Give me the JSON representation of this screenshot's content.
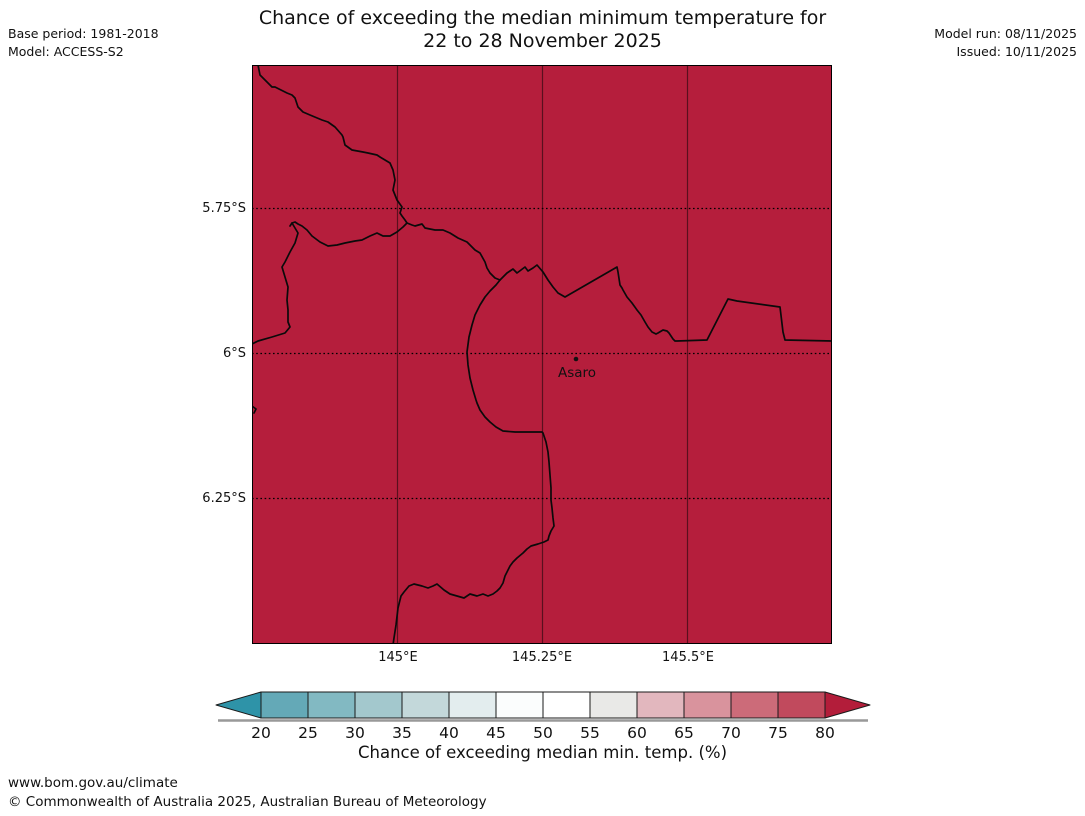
{
  "header": {
    "title_line1": "Chance of exceeding the median minimum temperature for",
    "title_line2": "22 to 28 November 2025",
    "base_period": "Base period: 1981-2018",
    "model": "Model: ACCESS-S2",
    "model_run": "Model run: 08/11/2025",
    "issued": "Issued: 10/11/2025"
  },
  "map": {
    "region_fill": "#b51e3c",
    "place_label": "Asaro",
    "y_ticks": [
      "5.75°S",
      "6°S",
      "6.25°S"
    ],
    "x_ticks": [
      "145°E",
      "145.25°E",
      "145.5°E"
    ]
  },
  "colorbar": {
    "caption": "Chance of exceeding median min. temp. (%)",
    "tick_labels": [
      "20",
      "25",
      "30",
      "35",
      "40",
      "45",
      "50",
      "55",
      "60",
      "65",
      "70",
      "75",
      "80"
    ],
    "segment_colors": [
      "#64a9b7",
      "#82b9c2",
      "#a3c8cd",
      "#c3d8da",
      "#e3edee",
      "#fbfdfd",
      "#ffffff",
      "#e9e9e7",
      "#e2b7be",
      "#d9939d",
      "#cc6b79",
      "#c14a5d"
    ],
    "arrow_left_color": "#2e93a8",
    "arrow_right_color": "#b31d3a"
  },
  "footer": {
    "url": "www.bom.gov.au/climate",
    "copyright": "© Commonwealth of Australia 2025, Australian Bureau of Meteorology"
  },
  "chart_data": {
    "type": "heatmap",
    "title": "Chance of exceeding the median minimum temperature for 22 to 28 November 2025",
    "x_axis": {
      "ticks": [
        "145°E",
        "145.25°E",
        "145.5°E"
      ],
      "range": [
        "144.75°E",
        "145.75°E"
      ],
      "grid": "solid vertical lines"
    },
    "y_axis": {
      "ticks": [
        "5.75°S",
        "6°S",
        "6.25°S"
      ],
      "range": [
        "5.5°S",
        "6.5°S"
      ],
      "grid": "dotted horizontal lines"
    },
    "colorbar": {
      "label": "Chance of exceeding median min. temp. (%)",
      "ticks": [
        20,
        25,
        30,
        35,
        40,
        45,
        50,
        55,
        60,
        65,
        70,
        75,
        80
      ],
      "extends_both_ends": true
    },
    "values": "entire mapped region uniform dark red, i.e. chance > 80%",
    "marker": {
      "name": "Asaro",
      "approx_lon": "145.31°E",
      "approx_lat": "6.01°S"
    },
    "base_period": "1981-2018",
    "model": "ACCESS-S2",
    "model_run": "08/11/2025",
    "issued": "10/11/2025"
  }
}
